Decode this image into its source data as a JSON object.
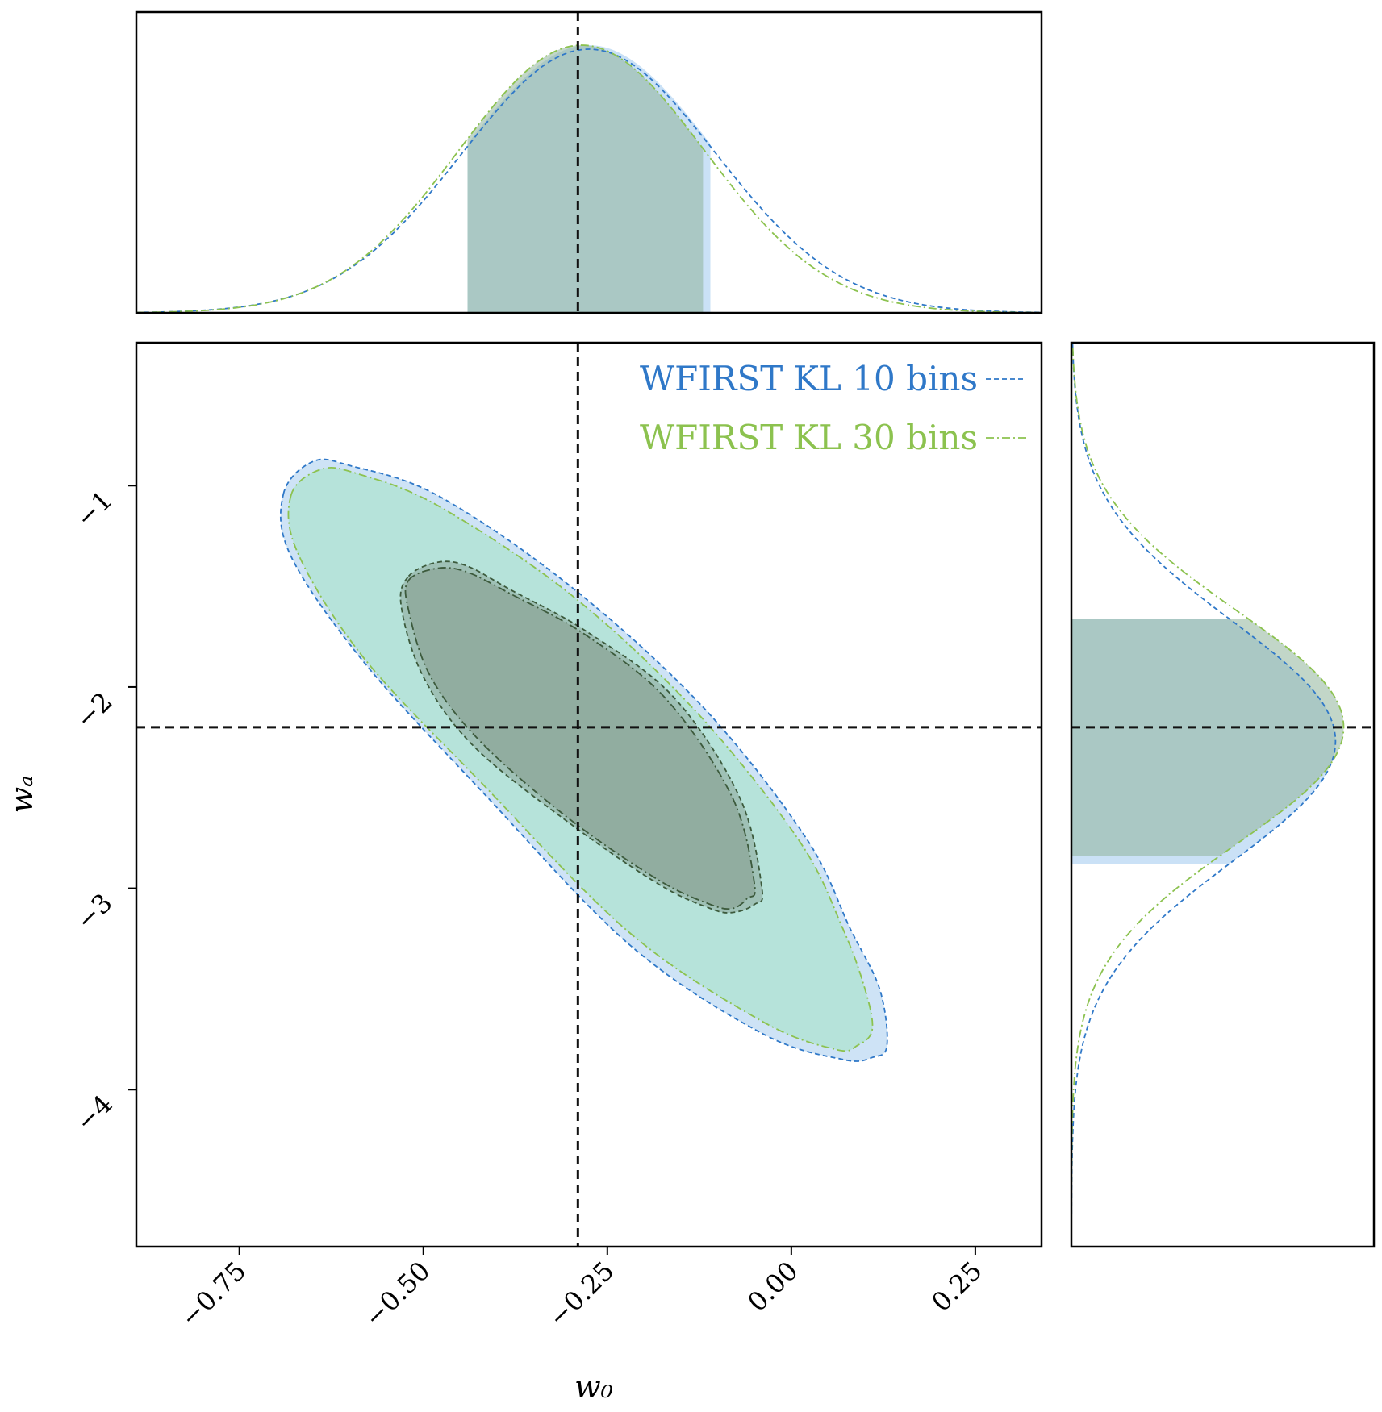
{
  "chart_data": {
    "type": "corner",
    "title": "",
    "xlabel": "w₀",
    "ylabel": "wₐ",
    "xlim": [
      -0.89,
      0.34
    ],
    "ylim": [
      -4.78,
      -0.29
    ],
    "x_ticks": [
      -0.75,
      -0.5,
      -0.25,
      0.0,
      0.25
    ],
    "x_tick_labels": [
      "−0.75",
      "−0.50",
      "−0.25",
      "0.00",
      "0.25"
    ],
    "y_ticks": [
      -1,
      -2,
      -3,
      -4
    ],
    "y_tick_labels": [
      "−1",
      "−2",
      "−3",
      "−4"
    ],
    "fiducial": {
      "w0": -0.29,
      "wa": -2.2
    },
    "legend_position": "top-right",
    "series": [
      {
        "name": "WFIRST KL 10 bins",
        "color": "#2f78c8",
        "fill_color": "#9ec8ee",
        "line_style": "dashed",
        "w0_mean": -0.275,
        "wa_mean": -2.27,
        "w0_sigma": 0.172,
        "wa_sigma": 0.6,
        "w0_68_interval": [
          -0.44,
          -0.11
        ],
        "wa_68_interval": [
          -2.88,
          -1.66
        ],
        "contour_68": [
          [
            -0.52,
            -1.45
          ],
          [
            -0.48,
            -1.38
          ],
          [
            -0.44,
            -1.4
          ],
          [
            -0.38,
            -1.52
          ],
          [
            -0.28,
            -1.72
          ],
          [
            -0.16,
            -2.05
          ],
          [
            -0.07,
            -2.55
          ],
          [
            -0.04,
            -3.0
          ],
          [
            -0.05,
            -3.08
          ],
          [
            -0.08,
            -3.12
          ],
          [
            -0.11,
            -3.1
          ],
          [
            -0.18,
            -2.98
          ],
          [
            -0.3,
            -2.68
          ],
          [
            -0.43,
            -2.3
          ],
          [
            -0.5,
            -1.95
          ],
          [
            -0.53,
            -1.6
          ]
        ],
        "contour_95": [
          [
            -0.69,
            -1.04
          ],
          [
            -0.65,
            -0.88
          ],
          [
            -0.6,
            -0.9
          ],
          [
            -0.48,
            -1.05
          ],
          [
            -0.3,
            -1.5
          ],
          [
            -0.12,
            -2.1
          ],
          [
            0.02,
            -2.75
          ],
          [
            0.08,
            -3.2
          ],
          [
            0.12,
            -3.5
          ],
          [
            0.13,
            -3.78
          ],
          [
            0.11,
            -3.84
          ],
          [
            0.07,
            -3.85
          ],
          [
            -0.04,
            -3.72
          ],
          [
            -0.22,
            -3.28
          ],
          [
            -0.42,
            -2.52
          ],
          [
            -0.58,
            -1.88
          ],
          [
            -0.68,
            -1.35
          ]
        ]
      },
      {
        "name": "WFIRST KL 30 bins",
        "color": "#8cc24f",
        "fill_color": "#9ee3bd",
        "line_style": "dashdot",
        "w0_mean": -0.285,
        "wa_mean": -2.2,
        "w0_sigma": 0.167,
        "wa_sigma": 0.58,
        "w0_68_interval": [
          -0.44,
          -0.12
        ],
        "wa_68_interval": [
          -2.84,
          -1.66
        ],
        "contour_68": [
          [
            -0.52,
            -1.47
          ],
          [
            -0.48,
            -1.41
          ],
          [
            -0.44,
            -1.43
          ],
          [
            -0.38,
            -1.54
          ],
          [
            -0.28,
            -1.74
          ],
          [
            -0.17,
            -2.06
          ],
          [
            -0.08,
            -2.55
          ],
          [
            -0.05,
            -2.98
          ],
          [
            -0.06,
            -3.05
          ],
          [
            -0.08,
            -3.1
          ],
          [
            -0.11,
            -3.08
          ],
          [
            -0.18,
            -2.96
          ],
          [
            -0.3,
            -2.66
          ],
          [
            -0.42,
            -2.28
          ],
          [
            -0.49,
            -1.95
          ],
          [
            -0.52,
            -1.62
          ]
        ],
        "contour_95": [
          [
            -0.68,
            -1.05
          ],
          [
            -0.64,
            -0.92
          ],
          [
            -0.59,
            -0.94
          ],
          [
            -0.48,
            -1.1
          ],
          [
            -0.3,
            -1.54
          ],
          [
            -0.13,
            -2.12
          ],
          [
            0.01,
            -2.76
          ],
          [
            0.07,
            -3.2
          ],
          [
            0.1,
            -3.5
          ],
          [
            0.11,
            -3.7
          ],
          [
            0.09,
            -3.78
          ],
          [
            0.06,
            -3.8
          ],
          [
            -0.04,
            -3.66
          ],
          [
            -0.22,
            -3.22
          ],
          [
            -0.42,
            -2.48
          ],
          [
            -0.58,
            -1.86
          ],
          [
            -0.67,
            -1.34
          ]
        ]
      }
    ]
  }
}
